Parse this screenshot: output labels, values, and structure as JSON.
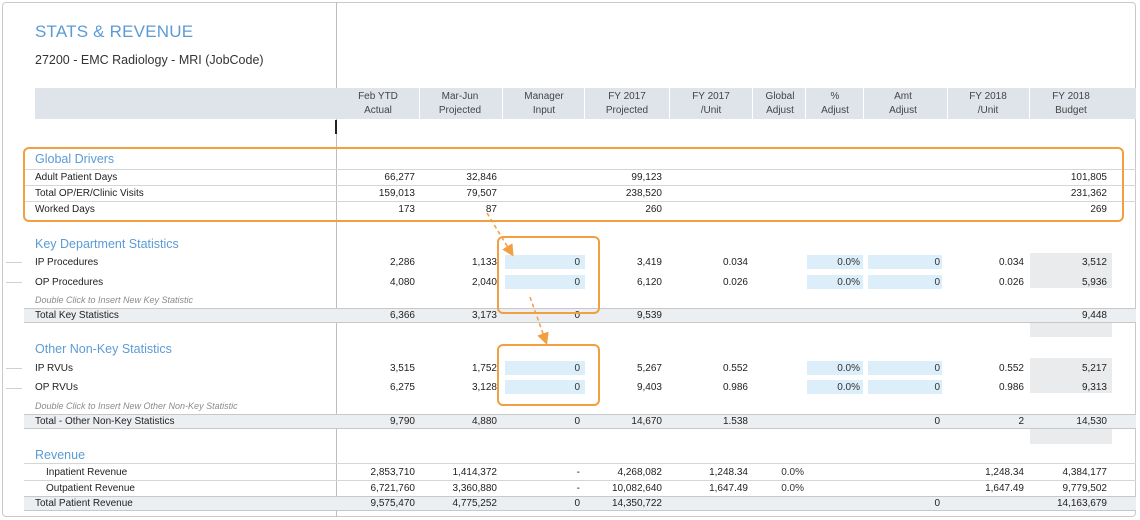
{
  "title": "STATS & REVENUE",
  "subtitle": "27200 - EMC Radiology - MRI (JobCode)",
  "columns": [
    {
      "l1": "Feb YTD",
      "l2": "Actual"
    },
    {
      "l1": "Mar-Jun",
      "l2": "Projected"
    },
    {
      "l1": "Manager",
      "l2": "Input"
    },
    {
      "l1": "FY 2017",
      "l2": "Projected"
    },
    {
      "l1": "FY 2017",
      "l2": "/Unit"
    },
    {
      "l1": "Global",
      "l2": "Adjust"
    },
    {
      "l1": "%",
      "l2": "Adjust"
    },
    {
      "l1": "Amt",
      "l2": "Adjust"
    },
    {
      "l1": "FY 2018",
      "l2": "/Unit"
    },
    {
      "l1": "FY 2018",
      "l2": "Budget"
    }
  ],
  "global_drivers": {
    "title": "Global Drivers",
    "rows": [
      {
        "label": "Adult Patient Days",
        "feb": "66,277",
        "mar": "32,846",
        "fy17": "99,123",
        "fy18": "101,805"
      },
      {
        "label": "Total OP/ER/Clinic Visits",
        "feb": "159,013",
        "mar": "79,507",
        "fy17": "238,520",
        "fy18": "231,362"
      },
      {
        "label": "Worked Days",
        "feb": "173",
        "mar": "87",
        "fy17": "260",
        "fy18": "269"
      }
    ]
  },
  "key_stats": {
    "title": "Key Department Statistics",
    "rows": [
      {
        "label": "IP Procedures",
        "feb": "2,286",
        "mar": "1,133",
        "mgr": "0",
        "fy17": "3,419",
        "unit17": "0.034",
        "pct": "0.0%",
        "amt": "0",
        "unit18": "0.034",
        "fy18": "3,512"
      },
      {
        "label": "OP Procedures",
        "feb": "4,080",
        "mar": "2,040",
        "mgr": "0",
        "fy17": "6,120",
        "unit17": "0.026",
        "pct": "0.0%",
        "amt": "0",
        "unit18": "0.026",
        "fy18": "5,936"
      }
    ],
    "hint": "Double Click to Insert New Key Statistic",
    "total": {
      "label": "Total Key Statistics",
      "feb": "6,366",
      "mar": "3,173",
      "mgr": "0",
      "fy17": "9,539",
      "fy18": "9,448"
    }
  },
  "other_stats": {
    "title": "Other Non-Key Statistics",
    "rows": [
      {
        "label": "IP RVUs",
        "feb": "3,515",
        "mar": "1,752",
        "mgr": "0",
        "fy17": "5,267",
        "unit17": "0.552",
        "pct": "0.0%",
        "amt": "0",
        "unit18": "0.552",
        "fy18": "5,217"
      },
      {
        "label": "OP RVUs",
        "feb": "6,275",
        "mar": "3,128",
        "mgr": "0",
        "fy17": "9,403",
        "unit17": "0.986",
        "pct": "0.0%",
        "amt": "0",
        "unit18": "0.986",
        "fy18": "9,313"
      }
    ],
    "hint": "Double Click to Insert New Other Non-Key Statistic",
    "total": {
      "label": "Total - Other Non-Key Statistics",
      "feb": "9,790",
      "mar": "4,880",
      "mgr": "0",
      "fy17": "14,670",
      "unit17": "1.538",
      "amt": "0",
      "unit18": "2",
      "fy18": "14,530"
    }
  },
  "revenue": {
    "title": "Revenue",
    "rows": [
      {
        "label": "Inpatient Revenue",
        "feb": "2,853,710",
        "mar": "1,414,372",
        "mgr": "-",
        "fy17": "4,268,082",
        "unit17": "1,248.34",
        "glob": "0.0%",
        "unit18": "1,248.34",
        "fy18": "4,384,177"
      },
      {
        "label": "Outpatient Revenue",
        "feb": "6,721,760",
        "mar": "3,360,880",
        "mgr": "-",
        "fy17": "10,082,640",
        "unit17": "1,647.49",
        "glob": "0.0%",
        "unit18": "1,647.49",
        "fy18": "9,779,502"
      }
    ],
    "total": {
      "label": "Total Patient Revenue",
      "feb": "9,575,470",
      "mar": "4,775,252",
      "mgr": "0",
      "fy17": "14,350,722",
      "amt": "0",
      "fy18": "14,163,679"
    }
  },
  "colors": {
    "accent": "#5b9bd5",
    "highlight": "#f0a040",
    "input_cell": "#dbeef9",
    "header_band": "#dfe4ea"
  }
}
